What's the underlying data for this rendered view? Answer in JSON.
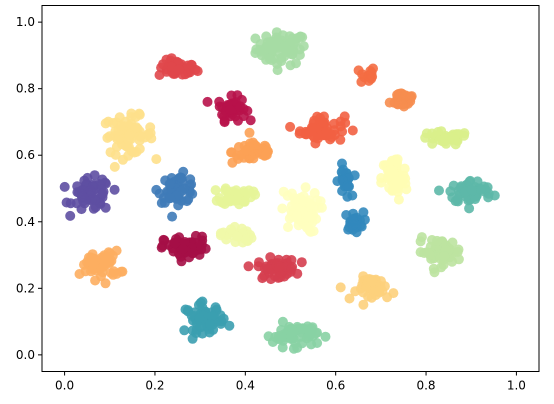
{
  "chart_data": {
    "type": "scatter",
    "title": "",
    "xlabel": "",
    "ylabel": "",
    "xlim": [
      -0.05,
      1.05
    ],
    "ylim": [
      -0.05,
      1.05
    ],
    "xticks": [
      "0.0",
      "0.2",
      "0.4",
      "0.6",
      "0.8",
      "1.0"
    ],
    "yticks": [
      "0.0",
      "0.2",
      "0.4",
      "0.6",
      "0.8",
      "1.0"
    ],
    "grid": false,
    "legend": "none",
    "clusters": [
      {
        "x": 0.48,
        "y": 0.92,
        "color": "#a6dba4",
        "n": 70,
        "sx": 0.04,
        "sy": 0.035
      },
      {
        "x": 0.25,
        "y": 0.86,
        "color": "#e0474b",
        "n": 45,
        "sx": 0.03,
        "sy": 0.018
      },
      {
        "x": 0.67,
        "y": 0.84,
        "color": "#f46d43",
        "n": 15,
        "sx": 0.012,
        "sy": 0.02
      },
      {
        "x": 0.75,
        "y": 0.77,
        "color": "#f68d4f",
        "n": 30,
        "sx": 0.02,
        "sy": 0.02
      },
      {
        "x": 0.37,
        "y": 0.74,
        "color": "#b8124a",
        "n": 45,
        "sx": 0.022,
        "sy": 0.025
      },
      {
        "x": 0.57,
        "y": 0.68,
        "color": "#f26043",
        "n": 55,
        "sx": 0.035,
        "sy": 0.03
      },
      {
        "x": 0.14,
        "y": 0.66,
        "color": "#fee08b",
        "n": 65,
        "sx": 0.04,
        "sy": 0.04
      },
      {
        "x": 0.42,
        "y": 0.61,
        "color": "#fca155",
        "n": 50,
        "sx": 0.035,
        "sy": 0.025
      },
      {
        "x": 0.84,
        "y": 0.65,
        "color": "#d9ef8b",
        "n": 35,
        "sx": 0.04,
        "sy": 0.015
      },
      {
        "x": 0.06,
        "y": 0.48,
        "color": "#5e4fa2",
        "n": 60,
        "sx": 0.03,
        "sy": 0.035
      },
      {
        "x": 0.25,
        "y": 0.5,
        "color": "#3f7bb8",
        "n": 55,
        "sx": 0.03,
        "sy": 0.03
      },
      {
        "x": 0.62,
        "y": 0.52,
        "color": "#3288bd",
        "n": 25,
        "sx": 0.01,
        "sy": 0.035
      },
      {
        "x": 0.64,
        "y": 0.4,
        "color": "#3288bd",
        "n": 25,
        "sx": 0.015,
        "sy": 0.02
      },
      {
        "x": 0.73,
        "y": 0.53,
        "color": "#fffdb4",
        "n": 60,
        "sx": 0.02,
        "sy": 0.05
      },
      {
        "x": 0.9,
        "y": 0.49,
        "color": "#5db8a9",
        "n": 55,
        "sx": 0.035,
        "sy": 0.025
      },
      {
        "x": 0.38,
        "y": 0.48,
        "color": "#e6f598",
        "n": 40,
        "sx": 0.025,
        "sy": 0.02
      },
      {
        "x": 0.52,
        "y": 0.43,
        "color": "#ffffbf",
        "n": 70,
        "sx": 0.03,
        "sy": 0.045
      },
      {
        "x": 0.38,
        "y": 0.36,
        "color": "#f0f8a8",
        "n": 25,
        "sx": 0.025,
        "sy": 0.02
      },
      {
        "x": 0.27,
        "y": 0.32,
        "color": "#a50e46",
        "n": 55,
        "sx": 0.035,
        "sy": 0.025
      },
      {
        "x": 0.08,
        "y": 0.27,
        "color": "#fdae61",
        "n": 55,
        "sx": 0.03,
        "sy": 0.03
      },
      {
        "x": 0.47,
        "y": 0.26,
        "color": "#d53e4f",
        "n": 50,
        "sx": 0.03,
        "sy": 0.022
      },
      {
        "x": 0.83,
        "y": 0.31,
        "color": "#bce3a0",
        "n": 50,
        "sx": 0.035,
        "sy": 0.028
      },
      {
        "x": 0.69,
        "y": 0.2,
        "color": "#fdd07c",
        "n": 45,
        "sx": 0.03,
        "sy": 0.025
      },
      {
        "x": 0.31,
        "y": 0.11,
        "color": "#3b9fb0",
        "n": 60,
        "sx": 0.03,
        "sy": 0.03
      },
      {
        "x": 0.51,
        "y": 0.06,
        "color": "#88d2a4",
        "n": 65,
        "sx": 0.035,
        "sy": 0.025
      }
    ]
  }
}
